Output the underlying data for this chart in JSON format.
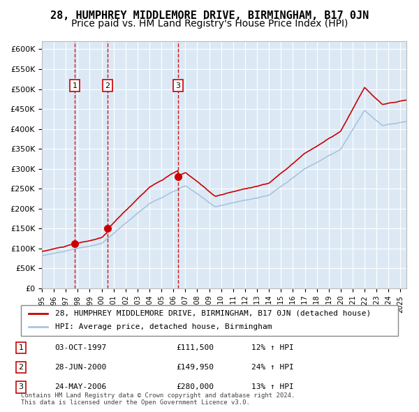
{
  "title": "28, HUMPHREY MIDDLEMORE DRIVE, BIRMINGHAM, B17 0JN",
  "subtitle": "Price paid vs. HM Land Registry's House Price Index (HPI)",
  "xlabel": "",
  "ylabel": "",
  "ylim": [
    0,
    620000
  ],
  "yticks": [
    0,
    50000,
    100000,
    150000,
    200000,
    250000,
    300000,
    350000,
    400000,
    450000,
    500000,
    550000,
    600000
  ],
  "ytick_labels": [
    "£0",
    "£50K",
    "£100K",
    "£150K",
    "£200K",
    "£250K",
    "£300K",
    "£350K",
    "£400K",
    "£450K",
    "£500K",
    "£550K",
    "£600K"
  ],
  "background_color": "#dce9f5",
  "plot_background": "#dce9f5",
  "grid_color": "#ffffff",
  "hpi_color": "#a8c4e0",
  "price_color": "#cc0000",
  "vline_color": "#cc0000",
  "sale_marker_color": "#cc0000",
  "title_fontsize": 11,
  "subtitle_fontsize": 10,
  "legend_label_price": "28, HUMPHREY MIDDLEMORE DRIVE, BIRMINGHAM, B17 0JN (detached house)",
  "legend_label_hpi": "HPI: Average price, detached house, Birmingham",
  "sale_dates": [
    1997.75,
    2000.5,
    2006.38
  ],
  "sale_prices": [
    111500,
    149950,
    280000
  ],
  "sale_labels": [
    "1",
    "2",
    "3"
  ],
  "sale_table": [
    [
      "1",
      "03-OCT-1997",
      "£111,500",
      "12% ↑ HPI"
    ],
    [
      "2",
      "28-JUN-2000",
      "£149,950",
      "24% ↑ HPI"
    ],
    [
      "3",
      "24-MAY-2006",
      "£280,000",
      "13% ↑ HPI"
    ]
  ],
  "footnote": "Contains HM Land Registry data © Crown copyright and database right 2024.\nThis data is licensed under the Open Government Licence v3.0.",
  "xlim": [
    1995.0,
    2025.5
  ],
  "xtick_years": [
    1995,
    1996,
    1997,
    1998,
    1999,
    2000,
    2001,
    2002,
    2003,
    2004,
    2005,
    2006,
    2007,
    2008,
    2009,
    2010,
    2011,
    2012,
    2013,
    2014,
    2015,
    2016,
    2017,
    2018,
    2019,
    2020,
    2021,
    2022,
    2023,
    2024,
    2025
  ]
}
